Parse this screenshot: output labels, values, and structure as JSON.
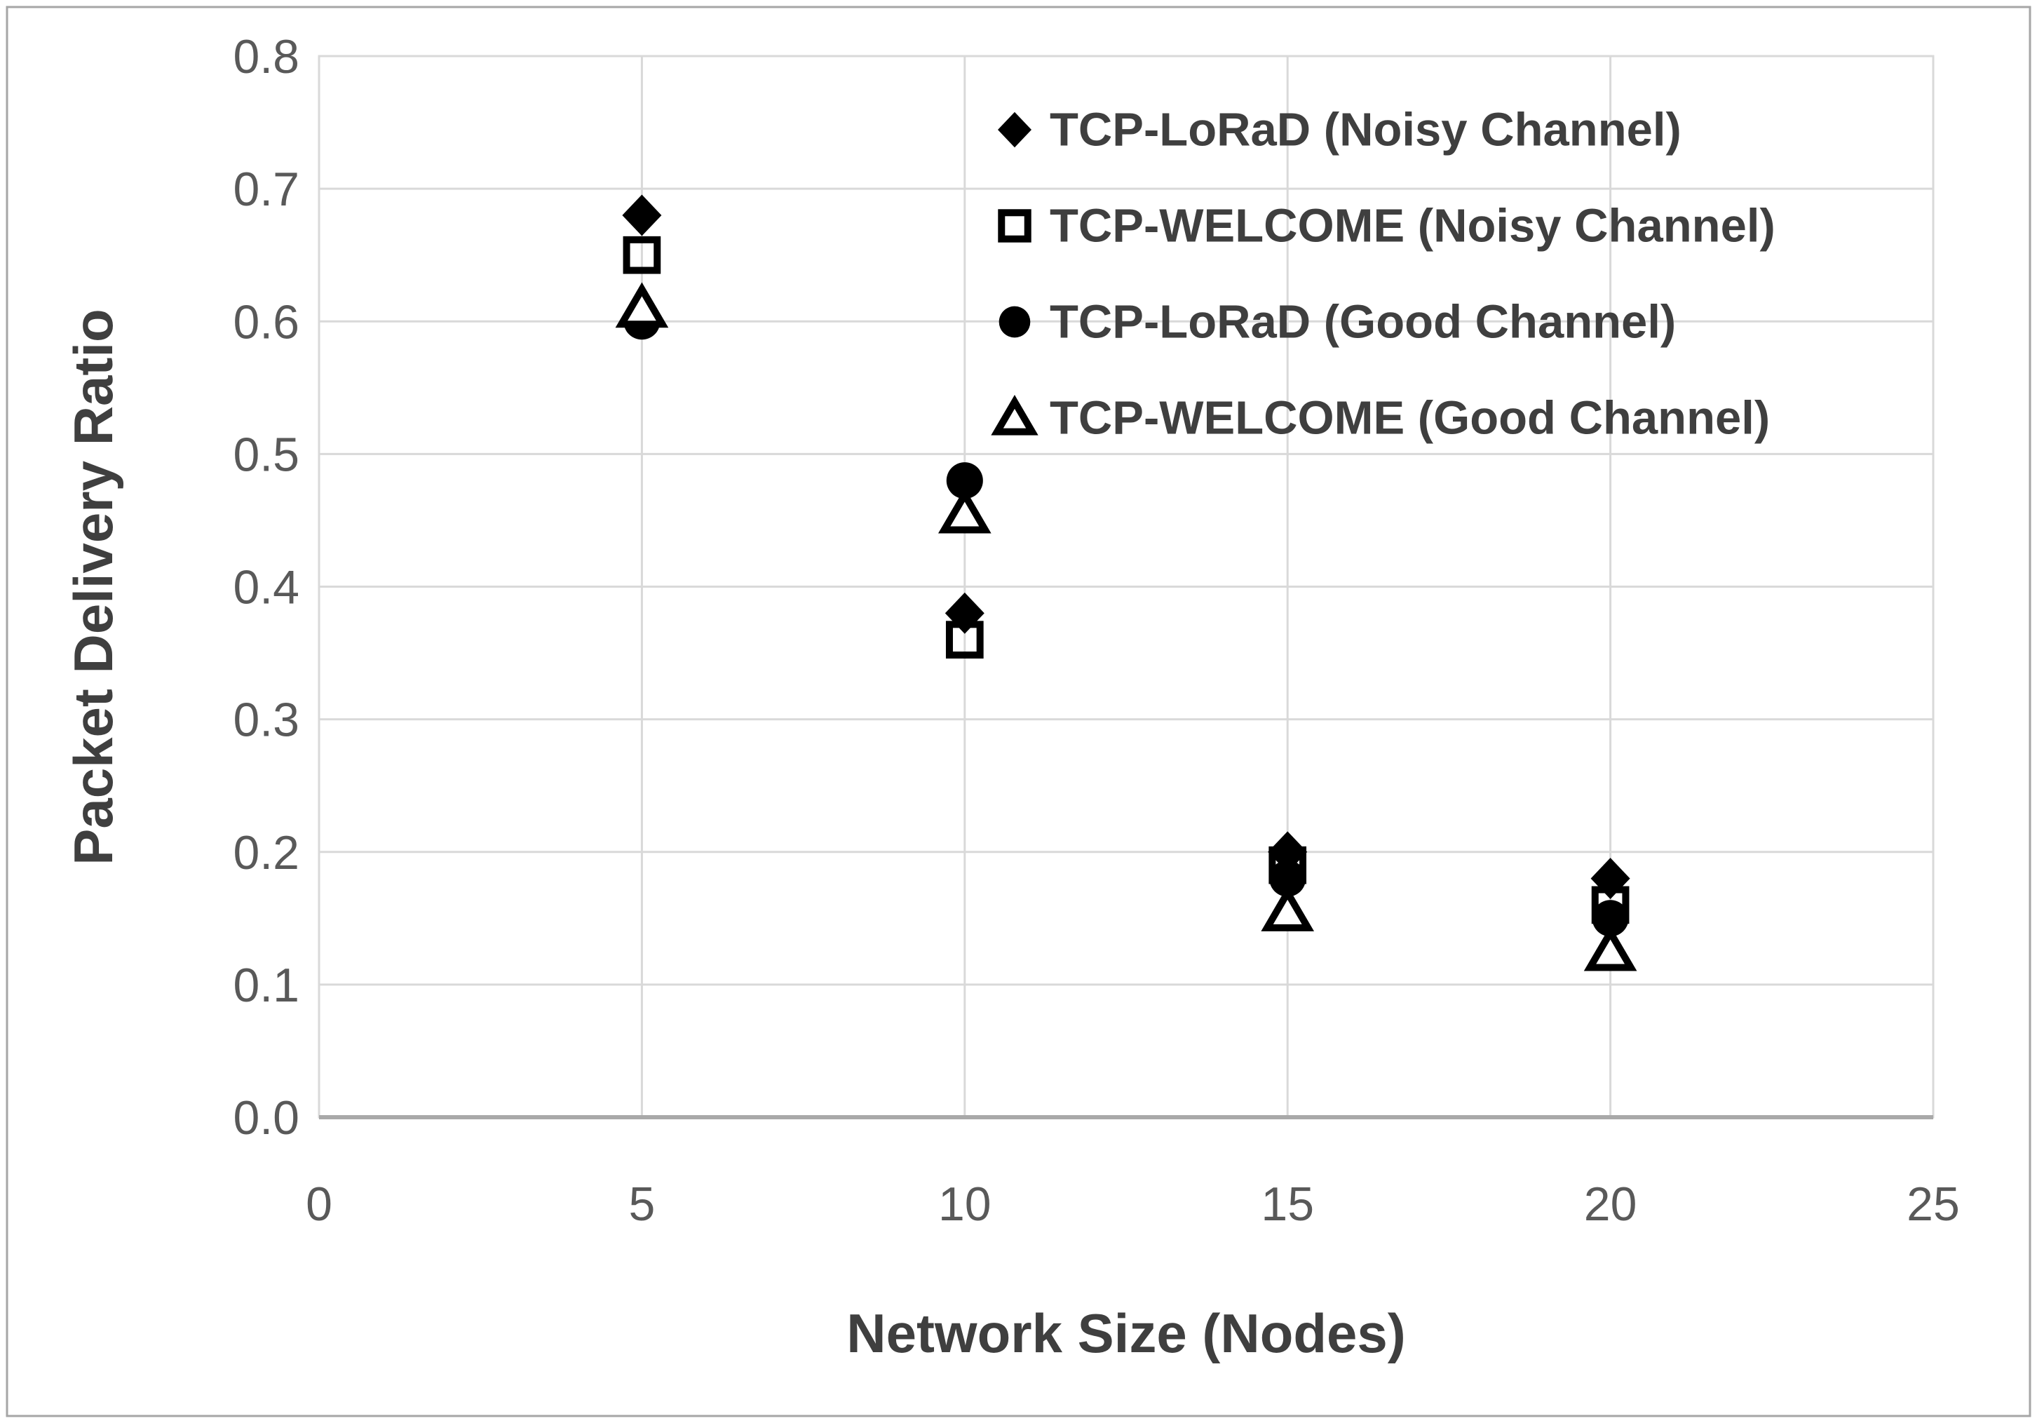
{
  "figure": {
    "type_label": "scatter-chart-figure",
    "background": "#ffffff",
    "frame_color": "#a6a6a6"
  },
  "chart_data": {
    "type": "scatter",
    "title": "",
    "xlabel": "Network Size (Nodes)",
    "ylabel": "Packet Delivery Ratio",
    "xlim": [
      0,
      25
    ],
    "ylim": [
      0.0,
      0.8
    ],
    "x_ticks": [
      0,
      5,
      10,
      15,
      20,
      25
    ],
    "y_ticks": [
      "0.0",
      "0.1",
      "0.2",
      "0.3",
      "0.4",
      "0.5",
      "0.6",
      "0.7",
      "0.8"
    ],
    "grid": true,
    "legend_position": "inside-top-right",
    "x": [
      5,
      10,
      15,
      20
    ],
    "series": [
      {
        "name": "TCP-LoRaD (Noisy Channel)",
        "marker": "diamond-filled",
        "values": [
          0.68,
          0.38,
          0.2,
          0.18
        ]
      },
      {
        "name": "TCP-WELCOME (Noisy Channel)",
        "marker": "square-open",
        "values": [
          0.65,
          0.36,
          0.19,
          0.16
        ]
      },
      {
        "name": "TCP-LoRaD (Good Channel)",
        "marker": "circle-filled",
        "values": [
          0.6,
          0.48,
          0.18,
          0.15
        ]
      },
      {
        "name": "TCP-WELCOME (Good Channel)",
        "marker": "triangle-open",
        "values": [
          0.61,
          0.455,
          0.155,
          0.125
        ]
      }
    ],
    "colors": {
      "marker": "#000000",
      "gridline": "#d9d9d9",
      "plot_border": "#d9d9d9",
      "axis_line": "#a9a9a9",
      "tick_label": "#595959",
      "axis_title": "#3f3f3f",
      "legend_text": "#3f3f3f"
    }
  }
}
